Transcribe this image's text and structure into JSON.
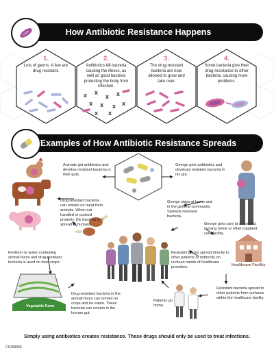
{
  "section1": {
    "title": "How Antibiotic Resistance Happens",
    "steps": [
      {
        "num": "1.",
        "text": "Lots of germs. A few are drug resistant."
      },
      {
        "num": "2.",
        "text": "Antibiotics kill bacteria causing the illness, as well as good bacteria protecting the body from infection."
      },
      {
        "num": "3.",
        "text": "The drug-resistant bacteria are now allowed to grow and take over."
      },
      {
        "num": "4.",
        "text": "Some bacteria give their drug-resistance to other bacteria, causing more problems."
      }
    ]
  },
  "section2": {
    "title": "Examples of How Antibiotic Resistance Spreads",
    "labels": {
      "animals": "Animals get antibiotics and develop resistant bacteria in their guts.",
      "george_gut": "George gets antibiotics and develops resistant bacteria in his gut.",
      "meat": "Drug-resistant bacteria can remain on meat from animals. When not handled or cooked properly, the bacteria can spread to humans.",
      "george_home": "George stays at home and in the general community. Spreads resistant bacteria.",
      "george_care": "George gets care at a hospital, nursing home or other inpatient care facility.",
      "fertilizer": "Fertilizer or water containing animal feces and drug-resistant bacteria is used on food crops.",
      "germs_spread": "Resistant germs spread directly to other patients or indirectly on unclean hands of healthcare providers.",
      "feces": "Drug-resistant bacteria in the animal feces can remain on crops and be eaten. These bacteria can remain in the human gut.",
      "patients": "Patients go home.",
      "surfaces": "Resistant bacteria spread to other patients from surfaces within the healthcare facility.",
      "vegetable_farm": "Vegetable Farm",
      "healthcare_facility": "Healthcare Facility"
    }
  },
  "footer": "Simply using antibiotics creates resistance. These drugs should only be used to treat infections.",
  "code": "CS259959",
  "colors": {
    "pink": "#d0669c",
    "purple": "#9d4f93",
    "dark": "#0d0d0d",
    "gray": "#8c8c8c",
    "lavender": "#a9b3dc"
  }
}
